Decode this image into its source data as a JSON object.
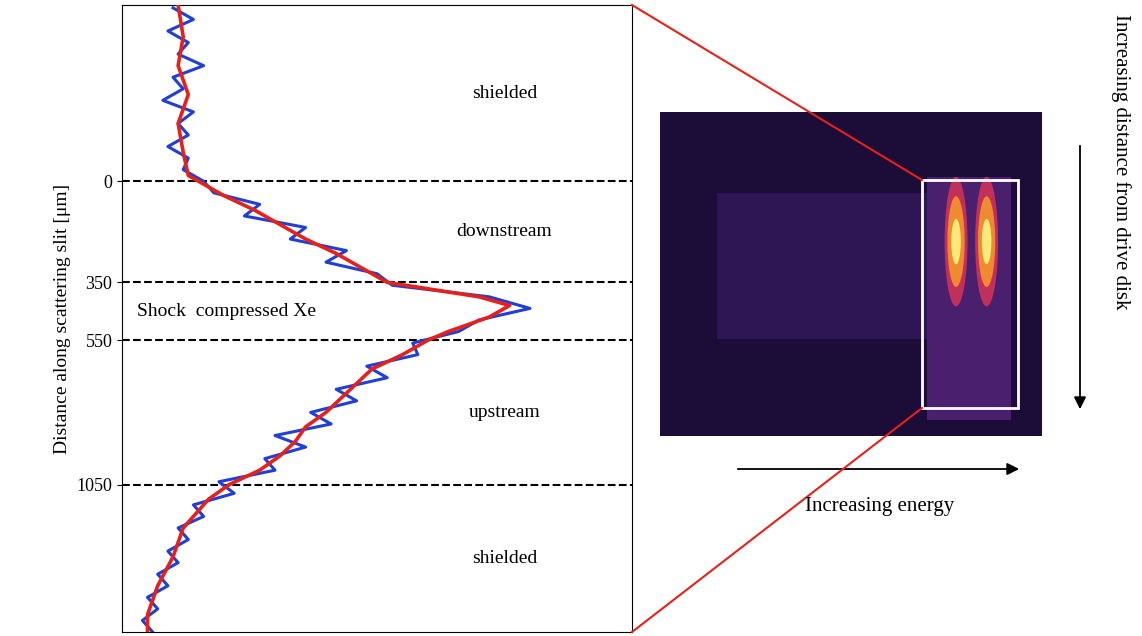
{
  "chart_data": {
    "type": "line",
    "ylabel": "Distance along scattering slit [μm]",
    "xlim": [
      0,
      100
    ],
    "ylim": [
      1560,
      -610
    ],
    "yticks": [
      0,
      350,
      550,
      1050
    ],
    "tick_labels": "y",
    "grid": false,
    "series": [
      {
        "color": "#1f3fd8",
        "line_style": "solid",
        "distance": [
          -600,
          -560,
          -520,
          -480,
          -440,
          -400,
          -360,
          -320,
          -280,
          -240,
          -200,
          -160,
          -120,
          -80,
          -40,
          0,
          40,
          80,
          120,
          160,
          200,
          240,
          280,
          320,
          360,
          400,
          440,
          480,
          520,
          560,
          600,
          640,
          680,
          720,
          760,
          800,
          840,
          880,
          920,
          960,
          1000,
          1040,
          1080,
          1120,
          1160,
          1200,
          1240,
          1280,
          1320,
          1360,
          1400,
          1440,
          1480,
          1520,
          1560
        ],
        "values": [
          10,
          14,
          9,
          13,
          11,
          16,
          10,
          12,
          8,
          14,
          11,
          13,
          9,
          13,
          12,
          16,
          18,
          27,
          24,
          36,
          33,
          44,
          40,
          50,
          53,
          72,
          80,
          70,
          66,
          57,
          58,
          48,
          52,
          42,
          46,
          37,
          41,
          30,
          36,
          28,
          30,
          19,
          22,
          14,
          16,
          11,
          13,
          9,
          11,
          7,
          9,
          5,
          7,
          4,
          6
        ]
      },
      {
        "color": "#e8201a",
        "line_style": "solid",
        "distance": [
          -610,
          -500,
          -400,
          -300,
          -200,
          -100,
          -20,
          0,
          50,
          100,
          150,
          200,
          250,
          300,
          350,
          400,
          430,
          470,
          520,
          550,
          600,
          650,
          700,
          750,
          800,
          850,
          900,
          950,
          1000,
          1050,
          1100,
          1200,
          1300,
          1400,
          1500,
          1560
        ],
        "values": [
          11,
          12,
          11,
          13,
          11,
          12,
          13,
          15,
          20,
          26,
          31,
          36,
          42,
          47,
          52,
          70,
          76,
          72,
          64,
          60,
          55,
          49,
          46,
          43,
          40,
          36,
          34,
          31,
          27,
          21,
          17,
          12,
          10,
          7,
          5,
          5
        ]
      }
    ],
    "regions": [
      {
        "label": "shielded",
        "from": -610,
        "to": 0
      },
      {
        "label": "downstream",
        "from": 0,
        "to": 350
      },
      {
        "label": "Shock  compressed Xe",
        "from": 350,
        "to": 550
      },
      {
        "label": "upstream",
        "from": 550,
        "to": 1050
      },
      {
        "label": "shielded",
        "from": 1050,
        "to": 1560
      }
    ],
    "annotations": [
      "Increasing energy",
      "Increasing distance from drive disk"
    ]
  }
}
